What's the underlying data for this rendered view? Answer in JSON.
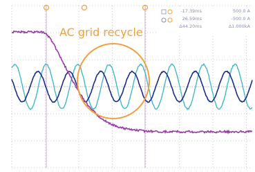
{
  "annotation": "AC grid recycle",
  "readout": {
    "rows": [
      [
        "-17.39ms",
        "500.0 A"
      ],
      [
        "26.59ms",
        "-500.0 A"
      ],
      [
        "Δ44.20ms",
        "Δ1.000kA"
      ]
    ]
  }
}
